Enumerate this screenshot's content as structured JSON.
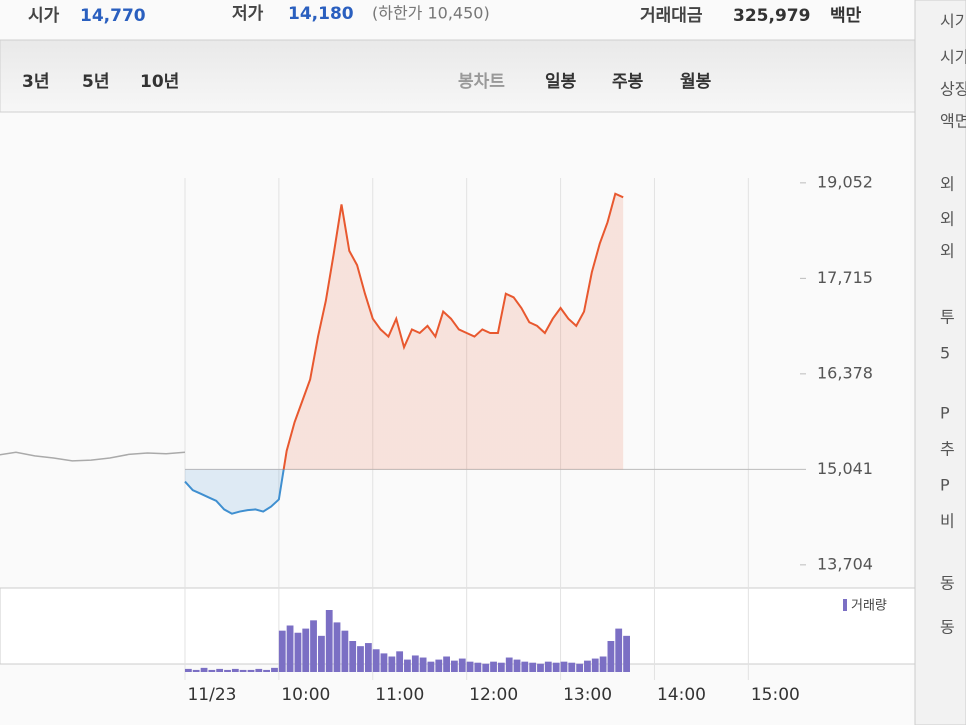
{
  "header": {
    "open_label": "시가",
    "open_value": "14,770",
    "low_label": "저가",
    "low_value": "14,180",
    "limit_note": "(하한가 10,450)",
    "amount_label": "거래대금",
    "amount_value": "325,979",
    "amount_unit": "백만"
  },
  "tabs": {
    "periods": [
      "3년",
      "5년",
      "10년"
    ],
    "views": [
      "봉차트",
      "일봉",
      "주봉",
      "월봉"
    ]
  },
  "side_panel": [
    "시기",
    "시가",
    "상장",
    "액면",
    "외",
    "외",
    "외",
    "투",
    "5",
    "P",
    "추",
    "P",
    "비",
    "동",
    "동"
  ],
  "chart_data": {
    "type": "line",
    "xlim": [
      7.03,
      15.55
    ],
    "xticks": [
      {
        "value": 9,
        "label": "11/23"
      },
      {
        "value": 10,
        "label": "10:00"
      },
      {
        "value": 11,
        "label": "11:00"
      },
      {
        "value": 12,
        "label": "12:00"
      },
      {
        "value": 13,
        "label": "13:00"
      },
      {
        "value": 14,
        "label": "14:00"
      },
      {
        "value": 15,
        "label": "15:00"
      }
    ],
    "ylim": [
      13520,
      20030
    ],
    "yticks": [
      {
        "value": 13704,
        "label": "13,704"
      },
      {
        "value": 15041,
        "label": "15,041"
      },
      {
        "value": 16378,
        "label": "16,378"
      },
      {
        "value": 17715,
        "label": "17,715"
      },
      {
        "value": 19052,
        "label": "19,052"
      }
    ],
    "reference_line": 15041,
    "up_color": "#e8582f",
    "down_color": "#3f8fd0",
    "previous_color": "#aaaaaa",
    "previous": {
      "x": [
        7.0,
        7.2,
        7.4,
        7.6,
        7.8,
        8.0,
        8.2,
        8.4,
        8.6,
        8.8,
        9.0
      ],
      "values": [
        15240,
        15280,
        15230,
        15200,
        15160,
        15170,
        15200,
        15250,
        15270,
        15260,
        15280
      ]
    },
    "x": [
      9,
      9.083,
      9.167,
      9.25,
      9.333,
      9.417,
      9.5,
      9.583,
      9.667,
      9.75,
      9.833,
      9.917,
      10,
      10.083,
      10.167,
      10.25,
      10.333,
      10.417,
      10.5,
      10.583,
      10.667,
      10.75,
      10.833,
      10.917,
      11,
      11.083,
      11.167,
      11.25,
      11.333,
      11.417,
      11.5,
      11.583,
      11.667,
      11.75,
      11.833,
      11.917,
      12,
      12.083,
      12.167,
      12.25,
      12.333,
      12.417,
      12.5,
      12.583,
      12.667,
      12.75,
      12.833,
      12.917,
      13,
      13.083,
      13.167,
      13.25,
      13.333,
      13.417,
      13.5,
      13.583,
      13.667
    ],
    "values": [
      14870,
      14750,
      14700,
      14650,
      14600,
      14480,
      14420,
      14450,
      14470,
      14480,
      14450,
      14520,
      14620,
      15300,
      15700,
      16000,
      16300,
      16900,
      17400,
      18050,
      18750,
      18100,
      17900,
      17500,
      17150,
      17000,
      16900,
      17150,
      16750,
      17000,
      16950,
      17050,
      16900,
      17250,
      17150,
      17000,
      16950,
      16900,
      17000,
      16950,
      16950,
      17500,
      17450,
      17300,
      17100,
      17050,
      16950,
      17150,
      17300,
      17150,
      17050,
      17250,
      17800,
      18200,
      18500,
      18900,
      18850
    ],
    "volume": {
      "name": "거래량",
      "color": "#7b6fc4",
      "values": [
        3,
        2,
        4,
        2,
        3,
        2,
        3,
        2,
        2,
        3,
        2,
        4,
        40,
        45,
        38,
        42,
        50,
        35,
        60,
        48,
        40,
        30,
        25,
        28,
        22,
        18,
        15,
        20,
        12,
        16,
        14,
        10,
        12,
        15,
        11,
        13,
        10,
        9,
        8,
        10,
        9,
        14,
        12,
        10,
        9,
        8,
        10,
        9,
        10,
        9,
        8,
        11,
        13,
        15,
        30,
        42,
        35
      ]
    }
  }
}
